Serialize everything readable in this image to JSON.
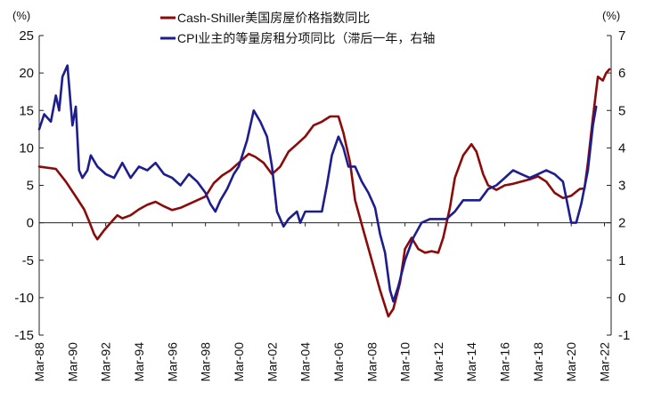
{
  "chart_data": {
    "type": "line",
    "left_unit": "(%)",
    "right_unit": "(%)",
    "left_axis": {
      "ylim": [
        -15,
        25
      ],
      "ticks": [
        -15,
        -10,
        -5,
        0,
        5,
        10,
        15,
        20,
        25
      ],
      "tick_labels": [
        "-15",
        "-10",
        "-5",
        "0",
        "5",
        "10",
        "15",
        "20",
        "25"
      ]
    },
    "right_axis": {
      "ylim": [
        -1,
        7
      ],
      "ticks": [
        -1,
        0,
        1,
        2,
        3,
        4,
        5,
        6,
        7
      ],
      "tick_labels": [
        "-1",
        "0",
        "1",
        "2",
        "3",
        "4",
        "5",
        "6",
        "7"
      ]
    },
    "x_axis": {
      "xlim": [
        1988.0,
        2022.4
      ],
      "ticks": [
        1988,
        1990,
        1992,
        1994,
        1996,
        1998,
        2000,
        2002,
        2004,
        2006,
        2008,
        2010,
        2012,
        2014,
        2016,
        2018,
        2020,
        2022
      ],
      "tick_labels": [
        "Mar-88",
        "Mar-90",
        "Mar-92",
        "Mar-94",
        "Mar-96",
        "Mar-98",
        "Mar-00",
        "Mar-02",
        "Mar-04",
        "Mar-06",
        "Mar-08",
        "Mar-10",
        "Mar-12",
        "Mar-14",
        "Mar-16",
        "Mar-18",
        "Mar-20",
        "Mar-22"
      ]
    },
    "grid": false,
    "legend_position": "top-center",
    "series": [
      {
        "name": "Cash-Shiller美国房屋价格指数同比",
        "axis": "left",
        "color": "#8b0a0a",
        "points": [
          [
            1988.0,
            7.5
          ],
          [
            1989.0,
            7.2
          ],
          [
            1989.6,
            5.5
          ],
          [
            1990.2,
            3.5
          ],
          [
            1990.7,
            1.8
          ],
          [
            1991.0,
            0.2
          ],
          [
            1991.3,
            -1.5
          ],
          [
            1991.5,
            -2.2
          ],
          [
            1991.9,
            -1.0
          ],
          [
            1992.3,
            0.0
          ],
          [
            1992.7,
            1.0
          ],
          [
            1993.0,
            0.6
          ],
          [
            1993.5,
            1.0
          ],
          [
            1994.0,
            1.8
          ],
          [
            1994.5,
            2.4
          ],
          [
            1995.0,
            2.8
          ],
          [
            1995.5,
            2.2
          ],
          [
            1996.0,
            1.7
          ],
          [
            1996.5,
            2.0
          ],
          [
            1997.0,
            2.5
          ],
          [
            1997.5,
            3.0
          ],
          [
            1998.0,
            3.5
          ],
          [
            1998.5,
            5.3
          ],
          [
            1999.0,
            6.3
          ],
          [
            1999.5,
            7.0
          ],
          [
            2000.0,
            8.0
          ],
          [
            2000.6,
            9.2
          ],
          [
            2001.0,
            8.8
          ],
          [
            2001.5,
            8.0
          ],
          [
            2002.0,
            6.5
          ],
          [
            2002.5,
            7.5
          ],
          [
            2003.0,
            9.5
          ],
          [
            2003.5,
            10.5
          ],
          [
            2004.0,
            11.5
          ],
          [
            2004.5,
            13.0
          ],
          [
            2005.0,
            13.5
          ],
          [
            2005.5,
            14.2
          ],
          [
            2006.0,
            14.2
          ],
          [
            2006.3,
            12.0
          ],
          [
            2006.7,
            8.0
          ],
          [
            2007.0,
            3.0
          ],
          [
            2007.5,
            -1.0
          ],
          [
            2008.0,
            -5.0
          ],
          [
            2008.5,
            -9.0
          ],
          [
            2009.0,
            -12.5
          ],
          [
            2009.3,
            -11.5
          ],
          [
            2009.7,
            -8.0
          ],
          [
            2010.0,
            -3.5
          ],
          [
            2010.4,
            -2.0
          ],
          [
            2010.8,
            -3.5
          ],
          [
            2011.2,
            -4.0
          ],
          [
            2011.6,
            -3.8
          ],
          [
            2012.0,
            -4.0
          ],
          [
            2012.3,
            -2.0
          ],
          [
            2012.7,
            2.0
          ],
          [
            2013.0,
            6.0
          ],
          [
            2013.5,
            9.0
          ],
          [
            2014.0,
            10.5
          ],
          [
            2014.3,
            9.5
          ],
          [
            2014.7,
            6.5
          ],
          [
            2015.0,
            5.0
          ],
          [
            2015.5,
            4.4
          ],
          [
            2016.0,
            5.0
          ],
          [
            2016.5,
            5.2
          ],
          [
            2017.0,
            5.5
          ],
          [
            2017.5,
            5.8
          ],
          [
            2018.0,
            6.2
          ],
          [
            2018.5,
            5.5
          ],
          [
            2019.0,
            4.0
          ],
          [
            2019.5,
            3.3
          ],
          [
            2020.0,
            3.6
          ],
          [
            2020.5,
            4.5
          ],
          [
            2020.8,
            4.6
          ],
          [
            2021.0,
            8.0
          ],
          [
            2021.3,
            14.0
          ],
          [
            2021.6,
            19.5
          ],
          [
            2021.9,
            19.0
          ],
          [
            2022.1,
            20.0
          ],
          [
            2022.3,
            20.5
          ]
        ]
      },
      {
        "name": "CPI业主的等量房租分项同比（滞后一年，右轴",
        "axis": "right",
        "color": "#1d1d8f",
        "points": [
          [
            1988.0,
            4.5
          ],
          [
            1988.3,
            4.9
          ],
          [
            1988.7,
            4.7
          ],
          [
            1989.0,
            5.4
          ],
          [
            1989.2,
            5.0
          ],
          [
            1989.4,
            5.9
          ],
          [
            1989.7,
            6.2
          ],
          [
            1990.0,
            4.6
          ],
          [
            1990.2,
            5.1
          ],
          [
            1990.4,
            3.4
          ],
          [
            1990.6,
            3.2
          ],
          [
            1990.9,
            3.4
          ],
          [
            1991.1,
            3.8
          ],
          [
            1991.5,
            3.5
          ],
          [
            1992.0,
            3.3
          ],
          [
            1992.5,
            3.2
          ],
          [
            1993.0,
            3.6
          ],
          [
            1993.5,
            3.2
          ],
          [
            1994.0,
            3.5
          ],
          [
            1994.5,
            3.4
          ],
          [
            1995.0,
            3.6
          ],
          [
            1995.5,
            3.3
          ],
          [
            1996.0,
            3.2
          ],
          [
            1996.5,
            3.0
          ],
          [
            1997.0,
            3.3
          ],
          [
            1997.5,
            3.1
          ],
          [
            1998.0,
            2.8
          ],
          [
            1998.3,
            2.5
          ],
          [
            1998.6,
            2.3
          ],
          [
            1998.9,
            2.6
          ],
          [
            1999.3,
            2.9
          ],
          [
            1999.7,
            3.3
          ],
          [
            2000.0,
            3.5
          ],
          [
            2000.5,
            4.2
          ],
          [
            2000.9,
            5.0
          ],
          [
            2001.3,
            4.7
          ],
          [
            2001.7,
            4.3
          ],
          [
            2002.0,
            3.5
          ],
          [
            2002.3,
            2.3
          ],
          [
            2002.7,
            1.9
          ],
          [
            2003.0,
            2.1
          ],
          [
            2003.5,
            2.3
          ],
          [
            2003.7,
            2.0
          ],
          [
            2004.0,
            2.3
          ],
          [
            2004.5,
            2.3
          ],
          [
            2005.0,
            2.3
          ],
          [
            2005.3,
            3.0
          ],
          [
            2005.6,
            3.8
          ],
          [
            2006.0,
            4.3
          ],
          [
            2006.3,
            4.0
          ],
          [
            2006.6,
            3.5
          ],
          [
            2007.0,
            3.5
          ],
          [
            2007.4,
            3.1
          ],
          [
            2007.8,
            2.8
          ],
          [
            2008.0,
            2.6
          ],
          [
            2008.2,
            2.4
          ],
          [
            2008.5,
            1.7
          ],
          [
            2008.8,
            1.2
          ],
          [
            2009.1,
            0.2
          ],
          [
            2009.3,
            -0.1
          ],
          [
            2009.6,
            0.3
          ],
          [
            2010.0,
            1.0
          ],
          [
            2010.5,
            1.6
          ],
          [
            2011.0,
            2.0
          ],
          [
            2011.5,
            2.1
          ],
          [
            2012.0,
            2.1
          ],
          [
            2012.5,
            2.1
          ],
          [
            2013.0,
            2.3
          ],
          [
            2013.5,
            2.6
          ],
          [
            2014.0,
            2.6
          ],
          [
            2014.5,
            2.6
          ],
          [
            2015.0,
            2.9
          ],
          [
            2015.5,
            3.0
          ],
          [
            2016.0,
            3.2
          ],
          [
            2016.5,
            3.4
          ],
          [
            2017.0,
            3.3
          ],
          [
            2017.5,
            3.2
          ],
          [
            2018.0,
            3.3
          ],
          [
            2018.5,
            3.4
          ],
          [
            2019.0,
            3.3
          ],
          [
            2019.5,
            3.1
          ],
          [
            2020.0,
            2.0
          ],
          [
            2020.3,
            2.0
          ],
          [
            2020.6,
            2.5
          ],
          [
            2021.0,
            3.4
          ],
          [
            2021.3,
            4.6
          ],
          [
            2021.5,
            5.1
          ]
        ]
      }
    ]
  }
}
